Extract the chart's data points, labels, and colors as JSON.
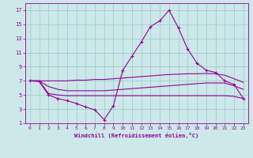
{
  "xlabel": "Windchill (Refroidissement éolien,°C)",
  "bg_color": "#cce8e8",
  "grid_color": "#99cccc",
  "line_color": "#990099",
  "xlim": [
    -0.5,
    23.5
  ],
  "ylim": [
    1,
    18
  ],
  "xticks": [
    0,
    1,
    2,
    3,
    4,
    5,
    6,
    7,
    8,
    9,
    10,
    11,
    12,
    13,
    14,
    15,
    16,
    17,
    18,
    19,
    20,
    21,
    22,
    23
  ],
  "yticks": [
    1,
    3,
    5,
    7,
    9,
    11,
    13,
    15,
    17
  ],
  "line1_x": [
    0,
    1,
    2,
    3,
    4,
    5,
    6,
    7,
    8,
    9,
    10,
    11,
    12,
    13,
    14,
    15,
    16,
    17,
    18,
    19,
    20,
    21,
    22,
    23
  ],
  "line1_y": [
    7.0,
    6.9,
    5.0,
    4.5,
    4.2,
    3.8,
    3.3,
    2.9,
    1.5,
    3.5,
    8.5,
    10.5,
    12.5,
    14.7,
    15.5,
    17.0,
    14.5,
    11.5,
    9.5,
    8.5,
    8.2,
    7.0,
    6.5,
    4.5
  ],
  "line2_x": [
    0,
    1,
    2,
    3,
    4,
    5,
    6,
    7,
    8,
    9,
    10,
    11,
    12,
    13,
    14,
    15,
    16,
    17,
    18,
    19,
    20,
    21,
    22,
    23
  ],
  "line2_y": [
    7.0,
    7.0,
    7.0,
    7.0,
    7.0,
    7.1,
    7.1,
    7.2,
    7.2,
    7.3,
    7.4,
    7.5,
    7.6,
    7.7,
    7.8,
    7.9,
    7.95,
    8.0,
    8.0,
    8.05,
    8.0,
    7.8,
    7.3,
    6.8
  ],
  "line3_x": [
    0,
    1,
    2,
    3,
    4,
    5,
    6,
    7,
    8,
    9,
    10,
    11,
    12,
    13,
    14,
    15,
    16,
    17,
    18,
    19,
    20,
    21,
    22,
    23
  ],
  "line3_y": [
    7.0,
    7.0,
    6.2,
    5.8,
    5.6,
    5.6,
    5.6,
    5.6,
    5.6,
    5.7,
    5.8,
    5.9,
    6.0,
    6.1,
    6.2,
    6.3,
    6.4,
    6.5,
    6.6,
    6.7,
    6.7,
    6.7,
    6.3,
    5.8
  ],
  "line4_x": [
    0,
    1,
    2,
    3,
    4,
    5,
    6,
    7,
    8,
    9,
    10,
    11,
    12,
    13,
    14,
    15,
    16,
    17,
    18,
    19,
    20,
    21,
    22,
    23
  ],
  "line4_y": [
    7.0,
    7.0,
    5.2,
    5.0,
    4.9,
    4.9,
    4.9,
    4.9,
    4.9,
    4.9,
    4.9,
    4.9,
    4.9,
    4.9,
    4.9,
    4.9,
    4.9,
    4.9,
    4.9,
    4.9,
    4.9,
    4.9,
    4.8,
    4.5
  ]
}
